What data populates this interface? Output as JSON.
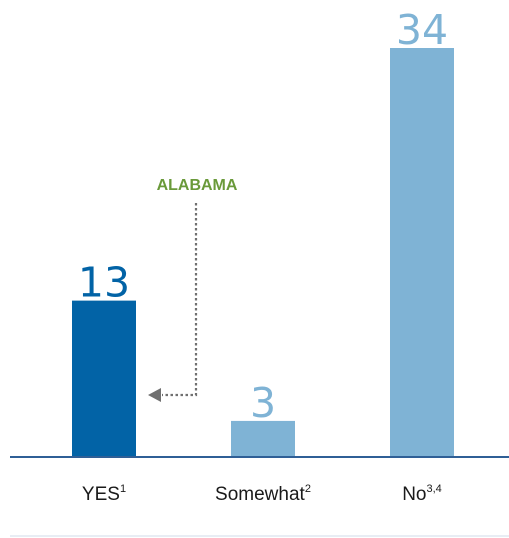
{
  "chart_data": {
    "type": "bar",
    "categories": [
      "YES",
      "Somewhat",
      "No"
    ],
    "category_superscripts": [
      "1",
      "2",
      "3,4"
    ],
    "values": [
      13,
      3,
      34
    ],
    "ylim": [
      0,
      34
    ],
    "grid": false,
    "title": "",
    "xlabel": "",
    "ylabel": "",
    "highlight_index": 0,
    "annotation": {
      "text": "ALABAMA",
      "target_category": "YES"
    },
    "colors": {
      "highlight_bar": "#0263a6",
      "bar": "#7fb3d5",
      "highlight_value": "#0263a6",
      "value": "#7fb3d5",
      "annotation_text": "#6a9a3a",
      "arrow": "#707070",
      "baseline": "#2f5f96",
      "footer_rule": "#d0dbe8"
    }
  }
}
